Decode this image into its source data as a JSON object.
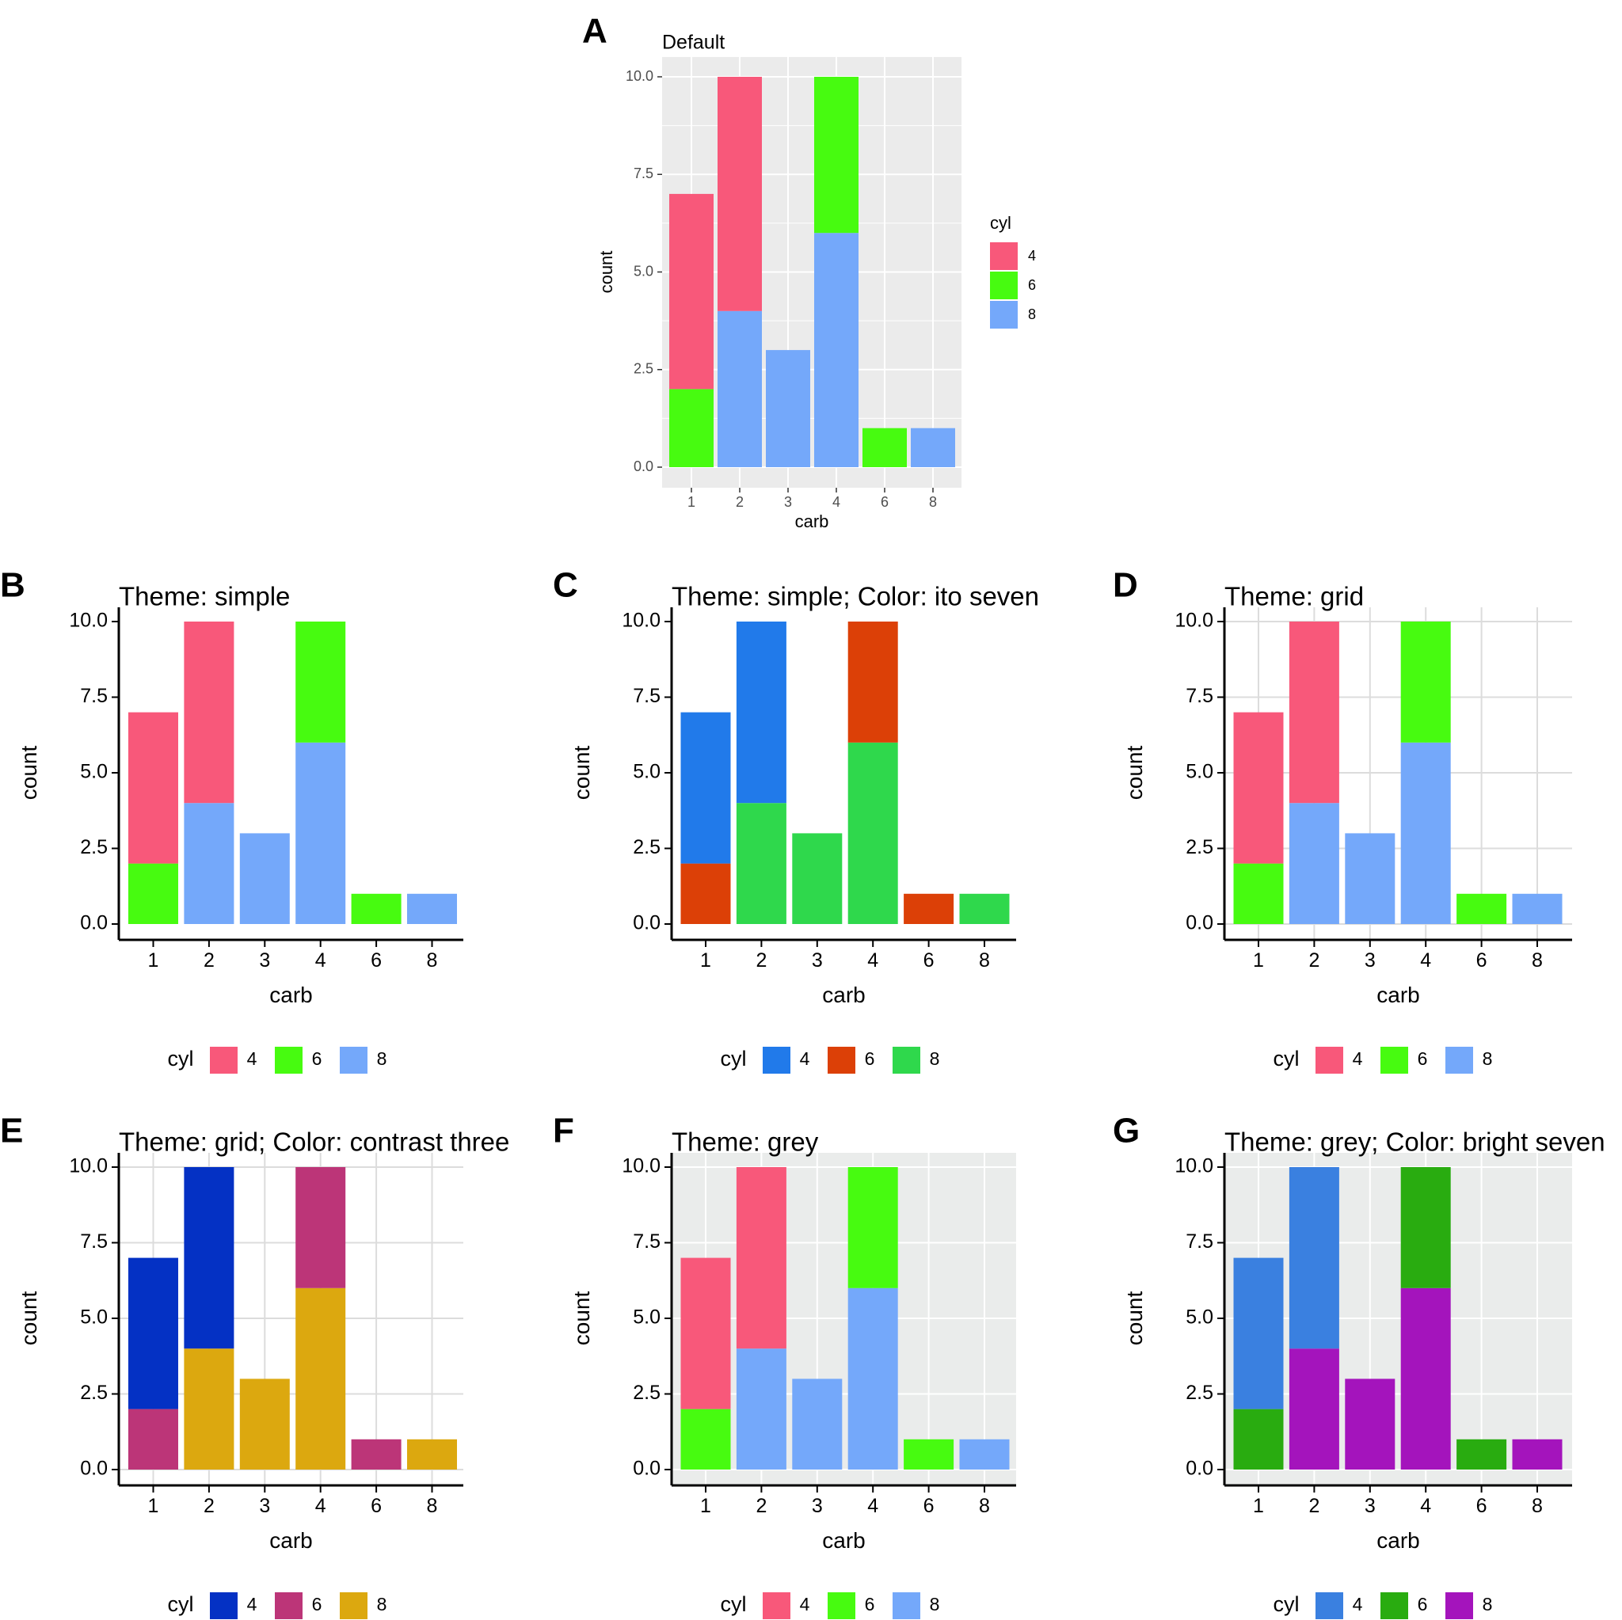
{
  "chart_data": [
    {
      "panel_letter": "A",
      "type": "bar",
      "stacked": true,
      "theme": "default",
      "title": "Default",
      "xlabel": "carb",
      "ylabel": "count",
      "categories": [
        "1",
        "2",
        "3",
        "4",
        "6",
        "8"
      ],
      "ylim": [
        0,
        10
      ],
      "yticks": [
        "0.0",
        "2.5",
        "5.0",
        "7.5",
        "10.0"
      ],
      "legend_title": "cyl",
      "legend_position": "right",
      "series": [
        {
          "name": "4",
          "color": "#F8587A",
          "values": [
            5,
            6,
            0,
            0,
            0,
            0
          ]
        },
        {
          "name": "6",
          "color": "#47FB10",
          "values": [
            2,
            0,
            0,
            4,
            1,
            0
          ]
        },
        {
          "name": "8",
          "color": "#74A8FA",
          "values": [
            0,
            4,
            3,
            6,
            0,
            1
          ]
        }
      ]
    },
    {
      "panel_letter": "B",
      "type": "bar",
      "stacked": true,
      "theme": "simple",
      "title": "Theme: simple",
      "xlabel": "carb",
      "ylabel": "count",
      "categories": [
        "1",
        "2",
        "3",
        "4",
        "6",
        "8"
      ],
      "ylim": [
        0,
        10
      ],
      "yticks": [
        "0.0",
        "2.5",
        "5.0",
        "7.5",
        "10.0"
      ],
      "legend_title": "cyl",
      "legend_position": "bottom",
      "series": [
        {
          "name": "4",
          "color": "#F8587A",
          "values": [
            5,
            6,
            0,
            0,
            0,
            0
          ]
        },
        {
          "name": "6",
          "color": "#47FB10",
          "values": [
            2,
            0,
            0,
            4,
            1,
            0
          ]
        },
        {
          "name": "8",
          "color": "#74A8FA",
          "values": [
            0,
            4,
            3,
            6,
            0,
            1
          ]
        }
      ]
    },
    {
      "panel_letter": "C",
      "type": "bar",
      "stacked": true,
      "theme": "simple",
      "title": "Theme: simple; Color: ito seven",
      "xlabel": "carb",
      "ylabel": "count",
      "categories": [
        "1",
        "2",
        "3",
        "4",
        "6",
        "8"
      ],
      "ylim": [
        0,
        10
      ],
      "yticks": [
        "0.0",
        "2.5",
        "5.0",
        "7.5",
        "10.0"
      ],
      "legend_title": "cyl",
      "legend_position": "bottom",
      "series": [
        {
          "name": "4",
          "color": "#217AEA",
          "values": [
            5,
            6,
            0,
            0,
            0,
            0
          ]
        },
        {
          "name": "6",
          "color": "#DC4007",
          "values": [
            2,
            0,
            0,
            4,
            1,
            0
          ]
        },
        {
          "name": "8",
          "color": "#2FD84C",
          "values": [
            0,
            4,
            3,
            6,
            0,
            1
          ]
        }
      ]
    },
    {
      "panel_letter": "D",
      "type": "bar",
      "stacked": true,
      "theme": "grid",
      "title": "Theme: grid",
      "xlabel": "carb",
      "ylabel": "count",
      "categories": [
        "1",
        "2",
        "3",
        "4",
        "6",
        "8"
      ],
      "ylim": [
        0,
        10
      ],
      "yticks": [
        "0.0",
        "2.5",
        "5.0",
        "7.5",
        "10.0"
      ],
      "legend_title": "cyl",
      "legend_position": "bottom",
      "series": [
        {
          "name": "4",
          "color": "#F8587A",
          "values": [
            5,
            6,
            0,
            0,
            0,
            0
          ]
        },
        {
          "name": "6",
          "color": "#47FB10",
          "values": [
            2,
            0,
            0,
            4,
            1,
            0
          ]
        },
        {
          "name": "8",
          "color": "#74A8FA",
          "values": [
            0,
            4,
            3,
            6,
            0,
            1
          ]
        }
      ]
    },
    {
      "panel_letter": "E",
      "type": "bar",
      "stacked": true,
      "theme": "grid",
      "title": "Theme: grid; Color: contrast three",
      "xlabel": "carb",
      "ylabel": "count",
      "categories": [
        "1",
        "2",
        "3",
        "4",
        "6",
        "8"
      ],
      "ylim": [
        0,
        10
      ],
      "yticks": [
        "0.0",
        "2.5",
        "5.0",
        "7.5",
        "10.0"
      ],
      "legend_title": "cyl",
      "legend_position": "bottom",
      "series": [
        {
          "name": "4",
          "color": "#0431C4",
          "values": [
            5,
            6,
            0,
            0,
            0,
            0
          ]
        },
        {
          "name": "6",
          "color": "#BC3578",
          "values": [
            2,
            0,
            0,
            4,
            1,
            0
          ]
        },
        {
          "name": "8",
          "color": "#DCA80F",
          "values": [
            0,
            4,
            3,
            6,
            0,
            1
          ]
        }
      ]
    },
    {
      "panel_letter": "F",
      "type": "bar",
      "stacked": true,
      "theme": "grey",
      "title": "Theme: grey",
      "xlabel": "carb",
      "ylabel": "count",
      "categories": [
        "1",
        "2",
        "3",
        "4",
        "6",
        "8"
      ],
      "ylim": [
        0,
        10
      ],
      "yticks": [
        "0.0",
        "2.5",
        "5.0",
        "7.5",
        "10.0"
      ],
      "legend_title": "cyl",
      "legend_position": "bottom",
      "series": [
        {
          "name": "4",
          "color": "#F8587A",
          "values": [
            5,
            6,
            0,
            0,
            0,
            0
          ]
        },
        {
          "name": "6",
          "color": "#47FB10",
          "values": [
            2,
            0,
            0,
            4,
            1,
            0
          ]
        },
        {
          "name": "8",
          "color": "#74A8FA",
          "values": [
            0,
            4,
            3,
            6,
            0,
            1
          ]
        }
      ]
    },
    {
      "panel_letter": "G",
      "type": "bar",
      "stacked": true,
      "theme": "grey",
      "title": "Theme: grey; Color: bright seven",
      "xlabel": "carb",
      "ylabel": "count",
      "categories": [
        "1",
        "2",
        "3",
        "4",
        "6",
        "8"
      ],
      "ylim": [
        0,
        10
      ],
      "yticks": [
        "0.0",
        "2.5",
        "5.0",
        "7.5",
        "10.0"
      ],
      "legend_title": "cyl",
      "legend_position": "bottom",
      "series": [
        {
          "name": "4",
          "color": "#3A80E0",
          "values": [
            5,
            6,
            0,
            0,
            0,
            0
          ]
        },
        {
          "name": "6",
          "color": "#29AC10",
          "values": [
            2,
            0,
            0,
            4,
            1,
            0
          ]
        },
        {
          "name": "8",
          "color": "#A414BC",
          "values": [
            0,
            4,
            3,
            6,
            0,
            1
          ]
        }
      ]
    }
  ]
}
